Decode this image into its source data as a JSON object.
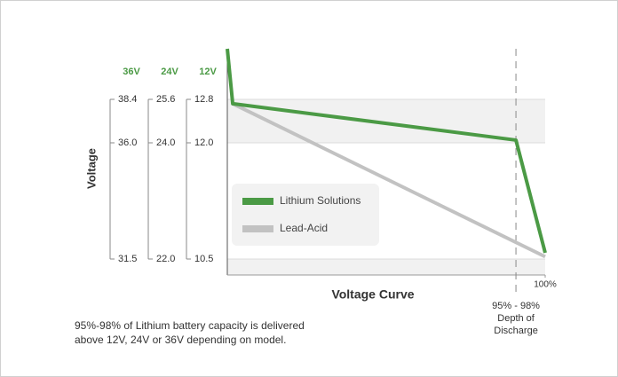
{
  "chart_data": {
    "type": "line",
    "title": "Voltage Curve",
    "ylabel": "Voltage",
    "xlim": [
      0,
      100
    ],
    "xticks": [
      {
        "value": 100,
        "label": "100%"
      }
    ],
    "ylim": [
      10.3,
      13.7
    ],
    "yticks": [
      12.8,
      {
        "value": 12,
        "label": "12.0"
      },
      10.5
    ],
    "axis_columns": [
      {
        "name": "36V",
        "ticks": [
          38.4,
          {
            "value": 36,
            "label": "36.0"
          },
          31.5
        ]
      },
      {
        "name": "24V",
        "ticks": [
          25.6,
          {
            "value": 24,
            "label": "24.0"
          },
          {
            "value": 22,
            "label": "22.0"
          }
        ]
      },
      {
        "name": "12V"
      }
    ],
    "series": [
      {
        "name": "Lead-Acid",
        "color": "#c2c2c2",
        "x": [
          1.7,
          100
        ],
        "values": [
          12.72,
          10.53
        ]
      },
      {
        "name": "Lithium Solutions",
        "color": "#4b9a45",
        "x": [
          0,
          1.7,
          90.8,
          100
        ],
        "values": [
          13.7,
          12.72,
          12.05,
          10.58
        ]
      }
    ],
    "legend_order": [
      1,
      0
    ],
    "marker": {
      "x": 90.8,
      "label": [
        "95% - 98%",
        "Depth of",
        "Discharge"
      ]
    },
    "note": [
      "95%-98% of Lithium battery capacity is delivered",
      "above 12V, 24V or 36V depending on model."
    ]
  }
}
